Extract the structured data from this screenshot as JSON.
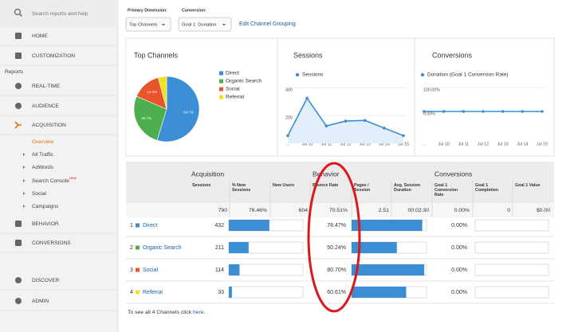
{
  "sidebar": {
    "search": "Search reports and help",
    "top": [
      "HOME",
      "CUSTOMIZATION"
    ],
    "section": "Reports",
    "reports": [
      "REAL-TIME",
      "AUDIENCE",
      "ACQUISITION"
    ],
    "acquisition": [
      "Overview",
      "All Traffic",
      "AdWords",
      "Search Console",
      "Social",
      "Campaigns"
    ],
    "badge": "NEW",
    "more": [
      "BEHAVIOR",
      "CONVERSIONS"
    ],
    "bottom": [
      "DISCOVER",
      "ADMIN"
    ]
  },
  "toolbar": {
    "primary_dimension": "Primary Dimension:",
    "conversion": "Conversion:",
    "dimension_value": "Top Channels",
    "conversion_value": "Goal 1: Donation",
    "link": "Edit Channel Grouping"
  },
  "chart_data": [
    {
      "type": "pie",
      "title": "Top Channels",
      "categories": [
        "Direct",
        "Organic Search",
        "Social",
        "Referral"
      ],
      "values": [
        54.7,
        26.7,
        14.4,
        4.2
      ],
      "value_labels": [
        "54.7%",
        "26.7%",
        "14.4%",
        null
      ],
      "colors": [
        "#3b8ed4",
        "#4cae4c",
        "#e8542c",
        "#f3e11d"
      ]
    },
    {
      "type": "line",
      "title": "Sessions",
      "categories": [
        "...",
        "Jul 10",
        "Jul 11",
        "Jul 12",
        "Jul 13",
        "Jul 14",
        "Jul 15"
      ],
      "series": [
        {
          "name": "Sessions",
          "color": "#3b8ed4",
          "values": [
            55,
            325,
            125,
            160,
            165,
            110,
            55
          ]
        }
      ],
      "area": true,
      "ylim": [
        0,
        430
      ],
      "yticks": [
        200,
        400
      ]
    },
    {
      "type": "line",
      "title": "Conversions",
      "categories": [
        "...",
        "Jul 10",
        "Jul 11",
        "Jul 12",
        "Jul 13",
        "Jul 14",
        "Jul 15"
      ],
      "series": [
        {
          "name": "Donation (Goal 1 Conversion Rate)",
          "color": "#3b8ed4",
          "values": [
            0,
            0,
            0,
            0,
            0,
            0,
            0
          ]
        }
      ],
      "area": false,
      "ylim": [
        0,
        100
      ],
      "yticks": [
        {
          "value": 0,
          "label": "0.00%"
        },
        {
          "value": 100,
          "label": "100.00%"
        }
      ]
    }
  ],
  "table": {
    "groups": [
      "Acquisition",
      "Behavior",
      "Conversions"
    ],
    "columns": [
      "Sessions",
      "% New Sessions",
      "New Users",
      "Bounce Rate",
      "Pages / Session",
      "Avg. Session Duration",
      "Goal 1 Conversion Rate",
      "Goal 1 Completion",
      "Goal 1 Value"
    ],
    "totals": [
      "790",
      "76.46%",
      "604",
      "70.51%",
      "2.51",
      "00:02:30",
      "0.00%",
      "0",
      "$0.00"
    ],
    "rows": [
      {
        "rank": "1",
        "channel": "Direct",
        "color": "#3b8ed4",
        "sessions": "432",
        "bounce_rate": "78.47%",
        "conversion_rate": "0.00%"
      },
      {
        "rank": "2",
        "channel": "Organic Search",
        "color": "#4cae4c",
        "sessions": "211",
        "bounce_rate": "50.24%",
        "conversion_rate": "0.00%"
      },
      {
        "rank": "3",
        "channel": "Social",
        "color": "#e8542c",
        "sessions": "114",
        "bounce_rate": "80.70%",
        "conversion_rate": "0.00%"
      },
      {
        "rank": "4",
        "channel": "Referral",
        "color": "#f3e11d",
        "sessions": "33",
        "bounce_rate": "60.61%",
        "conversion_rate": "0.00%"
      }
    ]
  },
  "footer": {
    "text": "To see all 4 Channels click ",
    "link": "here",
    "end": "."
  }
}
